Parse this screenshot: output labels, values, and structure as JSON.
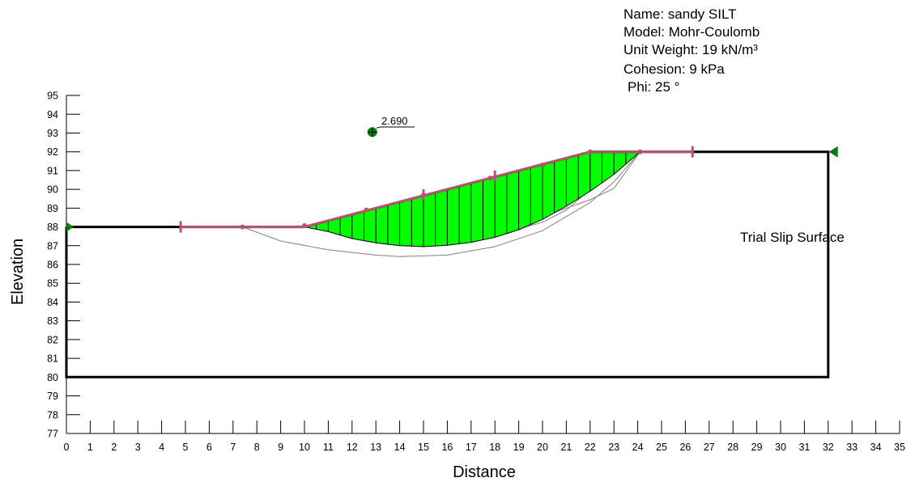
{
  "material": {
    "name": "Name: sandy SILT",
    "model": "Model: Mohr-Coulomb",
    "unit_weight": "Unit Weight: 19 kN/m³",
    "cohesion": "Cohesion: 9 kPa",
    "phi": "Phi: 25 °"
  },
  "annotation": "Trial Slip Surface",
  "factor_of_safety": "2.690",
  "colors": {
    "slice_fill": "#00ff00",
    "surface_line": "#b5556b",
    "boundary": "#000000",
    "trial_surfaces": "#808080",
    "marker": "#0a7a0a"
  },
  "chart_data": {
    "type": "diagram",
    "xlabel": "Distance",
    "ylabel": "Elevation",
    "xlim": [
      0,
      35
    ],
    "ylim": [
      77,
      95
    ],
    "x_ticks": [
      "0",
      "1",
      "2",
      "3",
      "4",
      "5",
      "6",
      "7",
      "8",
      "9",
      "10",
      "11",
      "12",
      "13",
      "14",
      "15",
      "16",
      "17",
      "18",
      "19",
      "20",
      "21",
      "22",
      "23",
      "24",
      "25",
      "26",
      "27",
      "28",
      "29",
      "30",
      "31",
      "32",
      "33",
      "34",
      "35"
    ],
    "y_ticks": [
      "77",
      "78",
      "79",
      "80",
      "81",
      "82",
      "83",
      "84",
      "85",
      "86",
      "87",
      "88",
      "89",
      "90",
      "91",
      "92",
      "93",
      "94",
      "95"
    ],
    "region_boundary": [
      [
        0,
        88
      ],
      [
        10,
        88
      ],
      [
        22,
        92
      ],
      [
        32,
        92
      ],
      [
        32,
        80
      ],
      [
        0,
        80
      ],
      [
        0,
        88
      ]
    ],
    "ground_surface": [
      [
        4.8,
        88
      ],
      [
        10,
        88
      ],
      [
        22,
        92
      ],
      [
        26.3,
        92
      ]
    ],
    "surface_points": [
      [
        7.4,
        88
      ],
      [
        10,
        88.07
      ],
      [
        12.6,
        88.9
      ],
      [
        15,
        89.7
      ],
      [
        17.8,
        90.6
      ],
      [
        20,
        91.3
      ],
      [
        22,
        92
      ],
      [
        24.1,
        92
      ]
    ],
    "surface_ticks": [
      [
        4.8,
        88
      ],
      [
        15,
        89.7
      ],
      [
        18,
        90.7
      ],
      [
        26.3,
        92
      ]
    ],
    "critical_slip": {
      "entry_x": 10,
      "exit_x": 24.1,
      "profile": [
        [
          10,
          88
        ],
        [
          11,
          87.75
        ],
        [
          12,
          87.38
        ],
        [
          13,
          87.15
        ],
        [
          14,
          87.0
        ],
        [
          15,
          86.95
        ],
        [
          16,
          87.02
        ],
        [
          17,
          87.18
        ],
        [
          18,
          87.45
        ],
        [
          19,
          87.85
        ],
        [
          20,
          88.4
        ],
        [
          21,
          89.1
        ],
        [
          22,
          89.9
        ],
        [
          23,
          90.8
        ],
        [
          24.1,
          92
        ]
      ],
      "slices_x": [
        10,
        10.5,
        11,
        11.5,
        12,
        12.5,
        13,
        13.5,
        14,
        14.5,
        15,
        15.5,
        16,
        16.5,
        17,
        17.5,
        18,
        18.5,
        19,
        19.5,
        20,
        20.5,
        21,
        21.5,
        22,
        22.5,
        23,
        23.5,
        24.1
      ]
    },
    "trial_slips": [
      [
        [
          7.4,
          88
        ],
        [
          9,
          87.25
        ],
        [
          11,
          86.78
        ],
        [
          13,
          86.5
        ],
        [
          14,
          86.42
        ],
        [
          16,
          86.5
        ],
        [
          18,
          86.95
        ],
        [
          20,
          87.8
        ],
        [
          22,
          89.3
        ],
        [
          23,
          90.4
        ],
        [
          24.1,
          92
        ]
      ],
      [
        [
          10,
          88
        ],
        [
          12,
          87.85
        ],
        [
          14,
          87.7
        ],
        [
          16,
          87.75
        ],
        [
          18,
          88.0
        ],
        [
          20,
          88.55
        ],
        [
          22,
          89.45
        ],
        [
          23,
          90.05
        ],
        [
          24.1,
          92
        ]
      ],
      [
        [
          10,
          88
        ],
        [
          13,
          87.45
        ],
        [
          16,
          87.35
        ],
        [
          18,
          87.55
        ],
        [
          20,
          88.25
        ],
        [
          21,
          88.9
        ],
        [
          22,
          90.0
        ],
        [
          23,
          91.1
        ],
        [
          24.1,
          92
        ]
      ],
      [
        [
          10,
          88
        ],
        [
          13,
          87.55
        ],
        [
          15,
          87.35
        ],
        [
          17,
          87.9
        ],
        [
          19,
          88.8
        ],
        [
          20,
          89.25
        ],
        [
          21,
          90.0
        ],
        [
          22,
          92
        ]
      ]
    ],
    "slip_center": [
      12.85,
      93.05
    ],
    "left_support": [
      0,
      88
    ],
    "right_support": [
      32.2,
      92
    ]
  }
}
